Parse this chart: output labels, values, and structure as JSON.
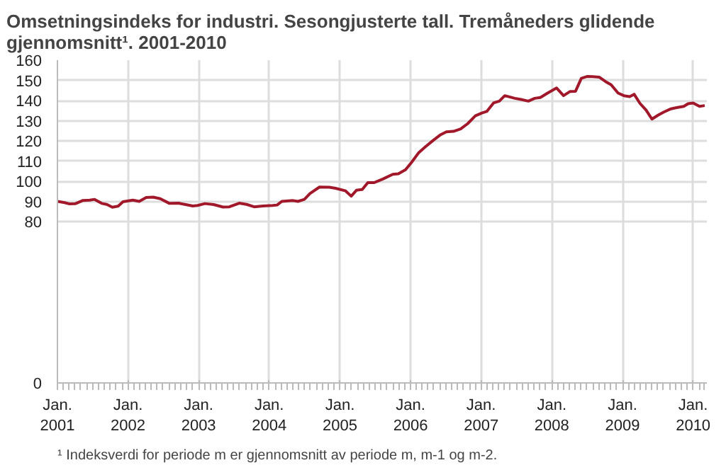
{
  "chart_data": {
    "type": "line",
    "title": "Omsetningsindeks for industri. Sesongjusterte tall. Tremåneders glidende gjennomsnitt¹. 2001-2010",
    "annotations": [
      "¹ Indeksverdi for periode m er gjennomsnitt av periode m, m-1 og m-2."
    ],
    "x": [
      "2001-01-01",
      "2001-02-07",
      "2001-03-02",
      "2001-04-05",
      "2001-05-11",
      "2001-06-17",
      "2001-07-12",
      "2001-08-18",
      "2001-09-13",
      "2001-10-12",
      "2001-11-11",
      "2001-12-06",
      "2002-01-26",
      "2002-02-28",
      "2002-04-05",
      "2002-05-11",
      "2002-06-17",
      "2002-08-03",
      "2002-09-20",
      "2002-10-26",
      "2002-12-02",
      "2002-12-27",
      "2003-02-03",
      "2003-03-20",
      "2003-05-07",
      "2003-06-09",
      "2003-07-30",
      "2003-09-06",
      "2003-10-15",
      "2003-11-29",
      "2004-01-19",
      "2004-02-11",
      "2004-03-06",
      "2004-05-03",
      "2004-05-29",
      "2004-07-01",
      "2004-07-30",
      "2004-09-17",
      "2004-11-07",
      "2004-12-09",
      "2005-01-30",
      "2005-02-28",
      "2005-03-27",
      "2005-04-26",
      "2005-05-25",
      "2005-06-27",
      "2005-08-11",
      "2005-10-01",
      "2005-10-30",
      "2005-12-06",
      "2006-01-05",
      "2006-02-11",
      "2006-03-17",
      "2006-04-30",
      "2006-06-06",
      "2006-07-05",
      "2006-08-11",
      "2006-09-17",
      "2006-10-23",
      "2006-12-02",
      "2007-01-05",
      "2007-01-30",
      "2007-03-06",
      "2007-04-05",
      "2007-05-03",
      "2007-06-24",
      "2007-07-26",
      "2007-09-02",
      "2007-10-05",
      "2007-11-03",
      "2007-12-09",
      "2008-01-26",
      "2008-03-02",
      "2008-04-05",
      "2008-05-03",
      "2008-06-02",
      "2008-07-01",
      "2008-07-30",
      "2008-09-02",
      "2008-10-05",
      "2008-11-03",
      "2008-12-09",
      "2009-01-08",
      "2009-02-07",
      "2009-03-02",
      "2009-04-01",
      "2009-05-03",
      "2009-06-02",
      "2009-07-05",
      "2009-08-03",
      "2009-09-09",
      "2009-10-08",
      "2009-11-14",
      "2009-12-06",
      "2010-01-01",
      "2010-02-03",
      "2010-03-02"
    ],
    "series": [
      {
        "color": "#a0182a",
        "values": [
          90,
          89.4,
          88.8,
          88.9,
          90.4,
          90.6,
          91,
          89,
          88.5,
          87.1,
          87.6,
          89.8,
          90.6,
          90,
          91.9,
          92.1,
          91.3,
          89,
          89.1,
          88.4,
          87.7,
          88,
          88.9,
          88.4,
          87.2,
          87.3,
          89.1,
          88.5,
          87.3,
          87.7,
          88,
          88.2,
          90,
          90.4,
          90,
          91,
          93.9,
          97.1,
          97,
          96.5,
          95.2,
          92.6,
          95.5,
          95.9,
          99.3,
          99.3,
          101.1,
          103.4,
          103.7,
          105.7,
          109.2,
          114,
          116.9,
          120.4,
          123.1,
          124.5,
          124.7,
          125.9,
          128.5,
          132.4,
          133.8,
          134.6,
          138.8,
          139.7,
          142.4,
          141.1,
          140.5,
          139.7,
          141.1,
          141.5,
          143.6,
          146.2,
          142.4,
          144.5,
          144.6,
          151,
          151.9,
          151.8,
          151.6,
          149.4,
          147.8,
          143.7,
          142.4,
          141.9,
          143.1,
          138.6,
          135.2,
          130.8,
          132.8,
          134.3,
          135.9,
          136.5,
          137.1,
          138.4,
          138.8,
          137.1,
          137.5
        ]
      }
    ],
    "xlim": [
      "2001-01-01",
      "2010-03-13"
    ],
    "xticks": [
      {
        "value": "2001-01-01",
        "label": "Jan.\n2001"
      },
      {
        "value": "2002-01-01",
        "label": "Jan.\n2002"
      },
      {
        "value": "2003-01-01",
        "label": "Jan.\n2003"
      },
      {
        "value": "2004-01-01",
        "label": "Jan.\n2004"
      },
      {
        "value": "2005-01-01",
        "label": "Jan.\n2005"
      },
      {
        "value": "2006-01-01",
        "label": "Jan.\n2006"
      },
      {
        "value": "2007-01-01",
        "label": "Jan.\n2007"
      },
      {
        "value": "2008-01-01",
        "label": "Jan.\n2008"
      },
      {
        "value": "2009-01-01",
        "label": "Jan.\n2009"
      },
      {
        "value": "2010-01-01",
        "label": "Jan.\n2010"
      }
    ],
    "ylim": [
      0,
      160
    ],
    "yticks": [
      0,
      80,
      90,
      100,
      110,
      120,
      130,
      140,
      150,
      160
    ],
    "grid": true,
    "marker": "none",
    "line_style": "solid"
  }
}
